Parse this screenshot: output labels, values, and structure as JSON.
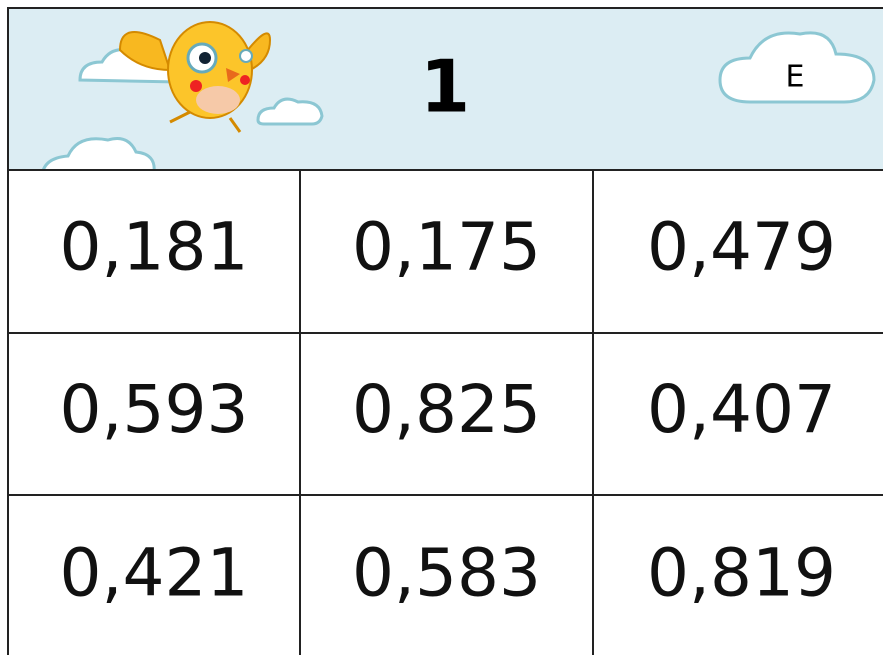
{
  "header": {
    "title": "1",
    "badge": "E"
  },
  "table": {
    "rows": [
      [
        "0,181",
        "0,175",
        "0,479"
      ],
      [
        "0,593",
        "0,825",
        "0,407"
      ],
      [
        "0,421",
        "0,583",
        "0,819"
      ]
    ]
  }
}
